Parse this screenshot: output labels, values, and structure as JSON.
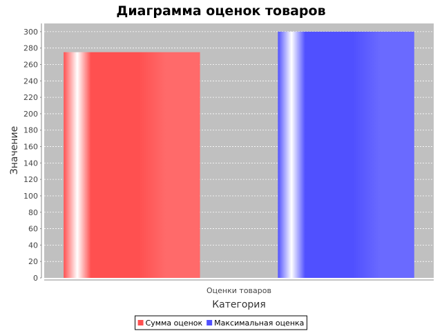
{
  "chart_data": {
    "type": "bar",
    "title": "Диаграмма оценок товаров",
    "xlabel": "Категория",
    "ylabel": "Значение",
    "categories": [
      "Оценки товаров"
    ],
    "series": [
      {
        "name": "Сумма оценок",
        "values": [
          275
        ],
        "color": "#ff5050"
      },
      {
        "name": "Максимальная оценка",
        "values": [
          300
        ],
        "color": "#5050ff"
      }
    ],
    "ylim": [
      0,
      310
    ],
    "yticks": [
      0,
      20,
      40,
      60,
      80,
      100,
      120,
      140,
      160,
      180,
      200,
      220,
      240,
      260,
      280,
      300
    ],
    "grid": true,
    "legend_position": "bottom",
    "plot_background": "#c0c0c0"
  }
}
